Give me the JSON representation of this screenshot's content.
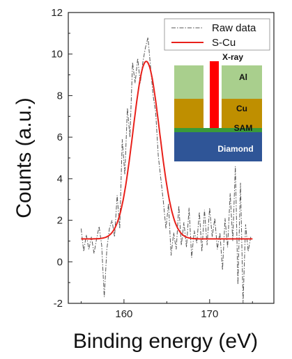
{
  "chart_data": {
    "type": "line",
    "title": "",
    "xlabel": "Binding energy (eV)",
    "ylabel": "Counts (a.u.)",
    "xlim": [
      153.5,
      177.5
    ],
    "ylim": [
      -2,
      12
    ],
    "xticks": [
      160,
      170
    ],
    "yticks": [
      -2,
      0,
      2,
      4,
      6,
      8,
      10,
      12
    ],
    "legend_position": "top-right",
    "series": [
      {
        "name": "Raw data",
        "style": "dash-dot",
        "color": "#555555",
        "x": [
          155.0,
          155.3,
          155.6,
          155.9,
          156.2,
          156.5,
          156.8,
          157.1,
          157.4,
          157.7,
          158.0,
          158.3,
          158.6,
          158.9,
          159.2,
          159.5,
          159.8,
          160.1,
          160.4,
          160.7,
          161.0,
          161.3,
          161.6,
          161.9,
          162.2,
          162.5,
          162.8,
          163.1,
          163.4,
          163.7,
          164.0,
          164.3,
          164.6,
          164.9,
          165.2,
          165.5,
          165.8,
          166.1,
          166.4,
          166.7,
          167.0,
          167.3,
          167.6,
          167.9,
          168.2,
          168.5,
          168.8,
          169.1,
          169.4,
          169.7,
          170.0,
          170.3,
          170.6,
          170.9,
          171.2,
          171.5,
          171.8,
          172.1,
          172.4,
          172.7,
          173.0,
          173.3,
          173.6,
          173.9,
          174.2,
          174.5,
          174.8
        ],
        "y": [
          1.6,
          0.5,
          1.3,
          0.6,
          1.2,
          0.4,
          1.1,
          1.7,
          0.8,
          -1.7,
          0.6,
          1.6,
          2.0,
          1.2,
          3.2,
          1.6,
          5.9,
          4.2,
          7.4,
          6.0,
          9.6,
          8.6,
          9.8,
          8.6,
          9.6,
          10.3,
          10.8,
          9.4,
          8.0,
          7.2,
          5.1,
          4.0,
          2.9,
          1.6,
          2.8,
          0.3,
          1.4,
          0.6,
          2.7,
          0.8,
          1.9,
          0.7,
          2.6,
          0.2,
          1.5,
          0.9,
          2.4,
          0.5,
          2.5,
          0.8,
          2.6,
          1.2,
          2.1,
          0.6,
          1.4,
          -0.4,
          2.1,
          0.7,
          3.3,
          1.0,
          4.6,
          -1.1,
          3.8,
          -2.0,
          1.8,
          0.5,
          1.2
        ]
      },
      {
        "name": "S-Cu",
        "style": "solid",
        "color": "#e8201a",
        "baseline": 1.1,
        "amplitude": 8.55,
        "center": 162.6,
        "sigma": 1.55,
        "x_range": [
          155.0,
          175.0
        ]
      }
    ]
  },
  "legend": {
    "raw_label": "Raw data",
    "fit_label": "S-Cu"
  },
  "inset": {
    "xray_label": "X-ray",
    "al_label": "Al",
    "cu_label": "Cu",
    "sam_label": "SAM",
    "diamond_label": "Diamond",
    "colors": {
      "al": "#a9cf8d",
      "cu": "#bf8f00",
      "sam_green": "#3a9a3a",
      "diamond": "#2f5597",
      "beam": "#ff0000"
    }
  }
}
